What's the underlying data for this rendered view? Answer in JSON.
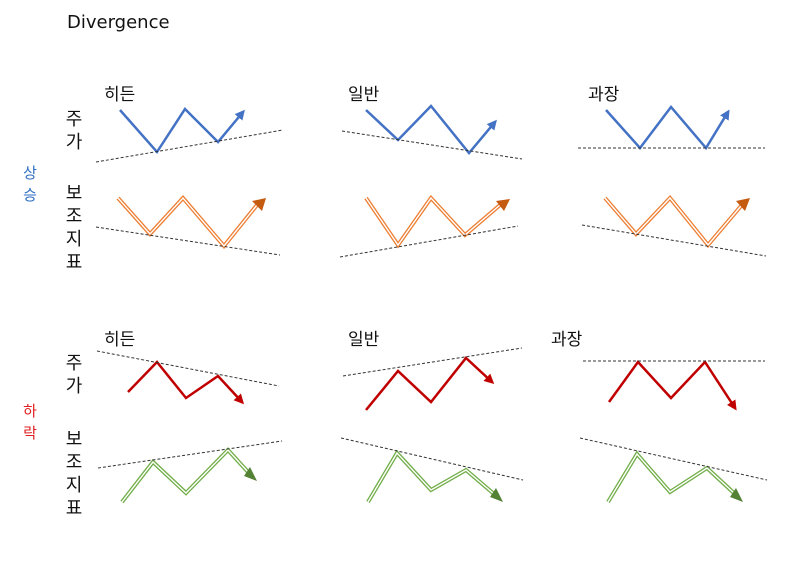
{
  "title": "Divergence",
  "colors": {
    "up_label": "#2f6fc4",
    "down_label": "#e02020",
    "price_up": "#4472c4",
    "indicator_up": "#ed7d31",
    "price_down": "#c00000",
    "indicator_down": "#70ad47",
    "dash": "#333333"
  },
  "rows": [
    {
      "side_label": "상승",
      "price_label": "주가",
      "indicator_label": "보조지표",
      "columns": [
        {
          "label": "히든",
          "price_trend": "rising lows",
          "indicator_trend": "falling lows"
        },
        {
          "label": "일반",
          "price_trend": "falling lows",
          "indicator_trend": "rising lows"
        },
        {
          "label": "과장",
          "price_trend": "flat lows",
          "indicator_trend": "falling lows"
        }
      ]
    },
    {
      "side_label": "하락",
      "price_label": "주가",
      "indicator_label": "보조지표",
      "columns": [
        {
          "label": "히든",
          "price_trend": "falling highs",
          "indicator_trend": "rising highs"
        },
        {
          "label": "일반",
          "price_trend": "rising highs",
          "indicator_trend": "falling highs"
        },
        {
          "label": "과장",
          "price_trend": "flat highs",
          "indicator_trend": "falling highs"
        }
      ]
    }
  ]
}
